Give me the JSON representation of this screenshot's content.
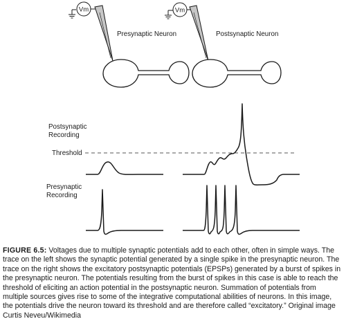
{
  "labels": {
    "meter": "Vm",
    "presynaptic_neuron": "Presynaptic Neuron",
    "postsynaptic_neuron": "Postsynaptic Neuron",
    "postsynaptic_recording_line1": "Postsynaptic",
    "postsynaptic_recording_line2": "Recording",
    "threshold": "Threshold",
    "presynaptic_recording_line1": "Presynaptic",
    "presynaptic_recording_line2": "Recording"
  },
  "caption": {
    "label": "FIGURE 6.5:",
    "text": "Voltages due to multiple synaptic potentials add to each other, often in simple ways. The trace on the left shows the synaptic potential generated by a single spike in the presynaptic neuron. The trace on the right shows the excitatory postsynaptic potentials (EPSPs) generated by a burst of spikes in the presynaptic neuron. The potentials resulting from the burst of spikes in this case is able to reach the threshold of eliciting an action potential in the postsynaptic neuron. Summation of potentials from multiple sources gives rise to some of the integrative computational abilities of neurons. In this image, the potentials drive the neuron toward its threshold and are therefore called “excitatory.” Original image Curtis Neveu/Wikimedia"
  },
  "colors": {
    "ink": "#1a1a1a",
    "threshold_dash": "#555555",
    "electrode_fill": "#bdbdbd"
  }
}
